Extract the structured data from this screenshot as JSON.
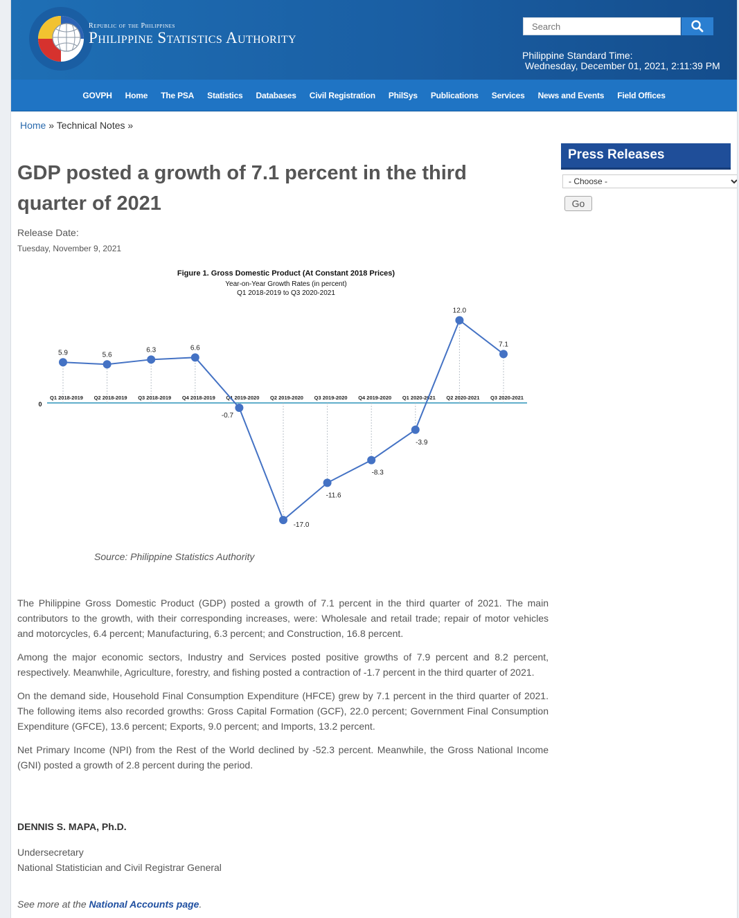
{
  "header": {
    "brand_top": "Republic of the Philippines",
    "brand_main": "Philippine Statistics Authority",
    "search_placeholder": "Search",
    "time_label": "Philippine Standard Time:",
    "time_value": "Wednesday, December 01, 2021, 2:11:39 PM",
    "colors": {
      "header_blue": "#1e6fb5",
      "nav_blue": "#1f74c4",
      "accent": "#2b7fd1"
    }
  },
  "nav": {
    "items": [
      "GOVPH",
      "Home",
      "The PSA",
      "Statistics",
      "Databases",
      "Civil Registration",
      "PhilSys",
      "Publications",
      "Services",
      "News and Events",
      "Field Offices"
    ]
  },
  "breadcrumb": {
    "home": "Home",
    "sep": "»",
    "current": "Technical Notes"
  },
  "article": {
    "title": "GDP posted a growth of 7.1 percent in the third quarter of 2021",
    "release_label": "Release Date:",
    "release_date": "Tuesday, November 9, 2021",
    "source": "Source: Philippine Statistics Authority",
    "paragraphs": [
      "The Philippine Gross Domestic Product (GDP) posted a growth of 7.1 percent in the third quarter of 2021. The main contributors to the growth, with their corresponding increases, were: Wholesale and retail trade; repair of motor vehicles and motorcycles, 6.4 percent; Manufacturing, 6.3 percent; and Construction, 16.8 percent.",
      "Among the major economic sectors, Industry and Services posted positive growths of 7.9 percent and 8.2 percent, respectively. Meanwhile, Agriculture, forestry, and fishing posted a contraction of -1.7 percent in the third quarter of 2021.",
      "On the demand side, Household Final Consumption Expenditure (HFCE) grew by 7.1 percent in the third quarter of 2021. The following items also recorded growths: Gross Capital Formation (GCF), 22.0 percent; Government Final Consumption Expenditure (GFCE), 13.6 percent; Exports, 9.0 percent; and Imports, 13.2 percent.",
      "Net Primary Income (NPI) from the Rest of the World declined by -52.3 percent. Meanwhile, the Gross National Income (GNI) posted a growth of 2.8 percent during the period."
    ],
    "signer_name": "DENNIS S. MAPA, Ph.D.",
    "signer_title": "Undersecretary",
    "signer_role": "National Statistician and Civil Registrar General",
    "see_more_prefix": "See more at the ",
    "see_more_link": "National Accounts page",
    "see_more_suffix": "."
  },
  "sidebar": {
    "title": "Press Releases",
    "select_value": "- Choose -",
    "go_label": "Go"
  },
  "chart_data": {
    "type": "line",
    "title": "Figure 1. Gross Domestic Product (At Constant 2018 Prices)",
    "subtitle": "Year-on-Year Growth Rates (in percent)",
    "subtitle2": "Q1 2018-2019 to Q3 2020-2021",
    "categories": [
      "Q1 2018-2019",
      "Q2 2018-2019",
      "Q3 2018-2019",
      "Q4 2018-2019",
      "Q1 2019-2020",
      "Q2 2019-2020",
      "Q3 2019-2020",
      "Q4 2019-2020",
      "Q1 2020-2021",
      "Q2 2020-2021",
      "Q3 2020-2021"
    ],
    "values": [
      5.9,
      5.6,
      6.3,
      6.6,
      -0.7,
      -17.0,
      -11.6,
      -8.3,
      -3.9,
      12.0,
      7.1
    ],
    "data_labels": [
      "5.9",
      "5.6",
      "6.3",
      "6.6",
      "-0.7",
      "-17.0",
      "-11.6",
      "-8.3",
      "-3.9",
      "12.0",
      "7.1"
    ],
    "zero_label": "0",
    "ylim": [
      -18,
      13
    ],
    "grid": false,
    "line_color": "#4472c4"
  }
}
